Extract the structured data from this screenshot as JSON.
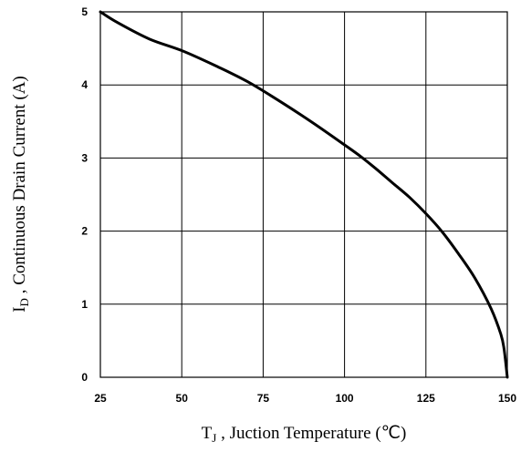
{
  "chart_data": {
    "type": "line",
    "title": "",
    "xlabel": {
      "main": "T",
      "sub": "J",
      "rest": " , Juction Temperature (℃)"
    },
    "ylabel": {
      "main": "I",
      "sub": "D",
      "rest": " , Continuous Drain Current (A)"
    },
    "xlim": [
      25,
      150
    ],
    "ylim": [
      0,
      5
    ],
    "x_ticks": [
      "25",
      "50",
      "75",
      "100",
      "125",
      "150"
    ],
    "y_ticks": [
      "0",
      "1",
      "2",
      "3",
      "4",
      "5"
    ],
    "grid": true,
    "series": [
      {
        "x": [
          25,
          30,
          40,
          50,
          60,
          70,
          80,
          90,
          100,
          105,
          110,
          115,
          120,
          125,
          130,
          135,
          140,
          145,
          148,
          149,
          150
        ],
        "y": [
          5.0,
          4.86,
          4.63,
          4.47,
          4.27,
          4.05,
          3.78,
          3.49,
          3.18,
          3.02,
          2.84,
          2.65,
          2.46,
          2.24,
          1.99,
          1.69,
          1.36,
          0.94,
          0.59,
          0.39,
          0.0
        ]
      }
    ]
  }
}
